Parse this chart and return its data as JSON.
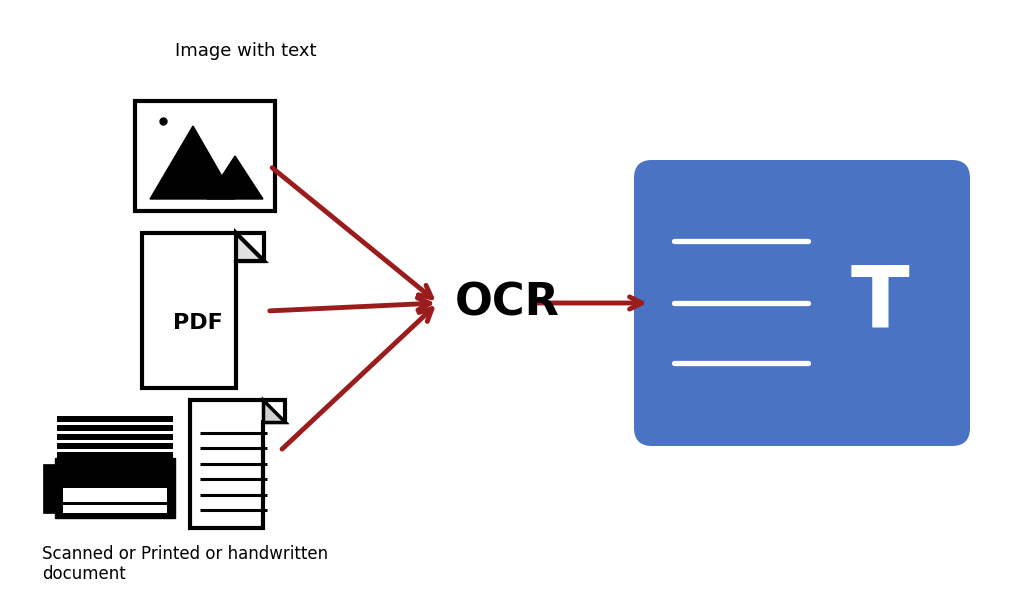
{
  "bg_color": "#ffffff",
  "arrow_color": "#9b1c1c",
  "ocr_label": "OCR",
  "ocr_label_fontsize": 32,
  "ocr_label_fontweight": "bold",
  "image_label": "Image with text",
  "image_label_fontsize": 13,
  "scan_label": "Scanned or Printed or handwritten\ndocument",
  "scan_label_fontsize": 12,
  "blue_box_color": "#4a73c4",
  "icon_lw": 3.0,
  "arrow_lw": 3.5,
  "arrow_ms": 22
}
